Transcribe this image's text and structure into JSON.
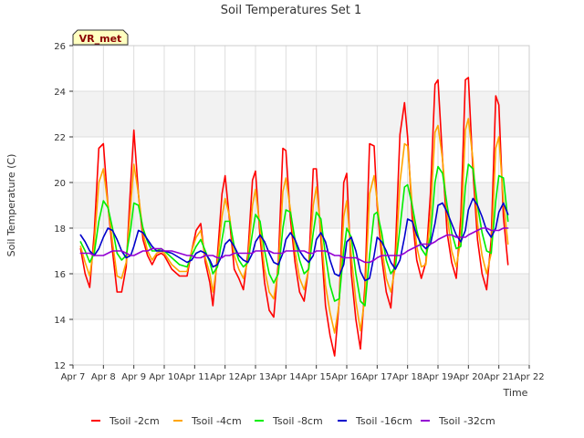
{
  "chart_data": {
    "type": "line",
    "title": "Soil Temperatures Set 1",
    "xlabel": "Time",
    "ylabel": "Soil Temperature (C)",
    "xlim": [
      7,
      22
    ],
    "ylim": [
      12,
      26
    ],
    "x_tick_values": [
      7,
      8,
      9,
      10,
      11,
      12,
      13,
      14,
      15,
      16,
      17,
      18,
      19,
      20,
      21,
      22
    ],
    "x_tick_labels": [
      "Apr 7",
      "Apr 8",
      "Apr 9",
      "Apr 10",
      "Apr 11",
      "Apr 12",
      "Apr 13",
      "Apr 14",
      "Apr 15",
      "Apr 16",
      "Apr 17",
      "Apr 18",
      "Apr 19",
      "Apr 20",
      "Apr 21",
      "Apr 22"
    ],
    "y_ticks": [
      12,
      14,
      16,
      18,
      20,
      22,
      24,
      26
    ],
    "grid": true,
    "legend_position": "bottom",
    "annotation": "VR_met",
    "series": [
      {
        "name": "Tsoil -2cm",
        "color": "#ff0000",
        "x": [
          7.25,
          7.4,
          7.55,
          7.7,
          7.85,
          8.0,
          8.15,
          8.3,
          8.45,
          8.6,
          8.75,
          8.9,
          9.0,
          9.15,
          9.3,
          9.45,
          9.6,
          9.75,
          9.9,
          10.0,
          10.25,
          10.5,
          10.75,
          10.9,
          11.05,
          11.2,
          11.35,
          11.5,
          11.6,
          11.75,
          11.9,
          12.0,
          12.15,
          12.3,
          12.45,
          12.6,
          12.75,
          12.9,
          13.0,
          13.15,
          13.3,
          13.45,
          13.6,
          13.75,
          13.9,
          14.0,
          14.15,
          14.3,
          14.45,
          14.6,
          14.75,
          14.9,
          15.0,
          15.15,
          15.3,
          15.45,
          15.6,
          15.75,
          15.9,
          16.0,
          16.15,
          16.3,
          16.45,
          16.6,
          16.75,
          16.9,
          17.0,
          17.15,
          17.3,
          17.45,
          17.6,
          17.75,
          17.9,
          18.0,
          18.15,
          18.3,
          18.45,
          18.6,
          18.75,
          18.9,
          19.0,
          19.15,
          19.3,
          19.45,
          19.6,
          19.75,
          19.9,
          20.0,
          20.15,
          20.3,
          20.45,
          20.6,
          20.75,
          20.9,
          21.0,
          21.15,
          21.3
        ],
        "values": [
          17.1,
          16.0,
          15.4,
          17.8,
          21.5,
          21.7,
          19.0,
          17.0,
          15.2,
          15.2,
          16.3,
          20.0,
          22.3,
          19.5,
          17.5,
          16.8,
          16.4,
          16.8,
          16.9,
          16.8,
          16.2,
          15.9,
          15.9,
          17.0,
          17.9,
          18.2,
          16.5,
          15.6,
          14.6,
          16.8,
          19.5,
          20.3,
          18.3,
          16.2,
          15.8,
          15.3,
          16.9,
          20.1,
          20.5,
          17.6,
          15.6,
          14.4,
          14.1,
          16.5,
          21.5,
          21.4,
          18.4,
          16.5,
          15.2,
          14.8,
          16.3,
          20.6,
          20.6,
          17.5,
          14.6,
          13.3,
          12.4,
          14.8,
          20.0,
          20.4,
          16.0,
          14.0,
          12.7,
          15.5,
          21.7,
          21.6,
          19.0,
          16.7,
          15.2,
          14.5,
          17.0,
          22.1,
          23.5,
          22.0,
          18.5,
          16.6,
          15.8,
          16.5,
          19.5,
          24.3,
          24.5,
          21.0,
          17.8,
          16.5,
          15.8,
          18.5,
          24.5,
          24.6,
          20.5,
          17.5,
          16.0,
          15.3,
          17.5,
          23.8,
          23.4,
          18.5,
          16.4
        ]
      },
      {
        "name": "Tsoil -4cm",
        "color": "#ffa500",
        "x": [
          7.25,
          7.4,
          7.55,
          7.7,
          7.85,
          8.0,
          8.15,
          8.3,
          8.45,
          8.6,
          8.75,
          8.9,
          9.0,
          9.15,
          9.3,
          9.45,
          9.6,
          9.75,
          9.9,
          10.0,
          10.25,
          10.5,
          10.75,
          10.9,
          11.05,
          11.2,
          11.35,
          11.5,
          11.6,
          11.75,
          11.9,
          12.0,
          12.15,
          12.3,
          12.45,
          12.6,
          12.75,
          12.9,
          13.0,
          13.15,
          13.3,
          13.45,
          13.6,
          13.75,
          13.9,
          14.0,
          14.15,
          14.3,
          14.45,
          14.6,
          14.75,
          14.9,
          15.0,
          15.15,
          15.3,
          15.45,
          15.6,
          15.75,
          15.9,
          16.0,
          16.15,
          16.3,
          16.45,
          16.6,
          16.75,
          16.9,
          17.0,
          17.15,
          17.3,
          17.45,
          17.6,
          17.75,
          17.9,
          18.0,
          18.15,
          18.3,
          18.45,
          18.6,
          18.75,
          18.9,
          19.0,
          19.15,
          19.3,
          19.45,
          19.6,
          19.75,
          19.9,
          20.0,
          20.15,
          20.3,
          20.45,
          20.6,
          20.75,
          20.9,
          21.0,
          21.15,
          21.3
        ],
        "values": [
          17.2,
          16.5,
          15.9,
          17.3,
          20.0,
          20.6,
          19.0,
          17.4,
          15.9,
          15.8,
          16.5,
          19.0,
          20.8,
          19.5,
          17.8,
          17.0,
          16.6,
          16.9,
          17.0,
          16.9,
          16.4,
          16.1,
          16.1,
          17.0,
          17.6,
          17.9,
          16.7,
          16.0,
          15.2,
          16.5,
          18.5,
          19.3,
          18.5,
          16.8,
          16.2,
          15.8,
          16.6,
          19.0,
          19.7,
          18.0,
          16.2,
          15.2,
          14.9,
          16.2,
          19.6,
          20.2,
          18.8,
          17.0,
          15.8,
          15.3,
          16.2,
          19.0,
          19.8,
          17.9,
          15.5,
          14.3,
          13.4,
          14.7,
          18.5,
          19.2,
          16.8,
          14.8,
          13.5,
          15.0,
          19.5,
          20.3,
          19.2,
          17.2,
          15.8,
          15.2,
          16.3,
          20.0,
          21.7,
          21.6,
          19.0,
          17.2,
          16.3,
          16.4,
          18.5,
          22.2,
          22.5,
          21.0,
          18.6,
          17.0,
          16.3,
          17.5,
          22.3,
          22.8,
          21.0,
          18.2,
          16.8,
          16.0,
          16.9,
          21.5,
          22.0,
          19.2,
          17.3
        ]
      },
      {
        "name": "Tsoil -8cm",
        "color": "#00ee00",
        "x": [
          7.25,
          7.4,
          7.55,
          7.7,
          7.85,
          8.0,
          8.15,
          8.3,
          8.45,
          8.6,
          8.75,
          8.9,
          9.0,
          9.15,
          9.3,
          9.45,
          9.6,
          9.75,
          9.9,
          10.0,
          10.25,
          10.5,
          10.75,
          10.9,
          11.05,
          11.2,
          11.35,
          11.5,
          11.6,
          11.75,
          11.9,
          12.0,
          12.15,
          12.3,
          12.45,
          12.6,
          12.75,
          12.9,
          13.0,
          13.15,
          13.3,
          13.45,
          13.6,
          13.75,
          13.9,
          14.0,
          14.15,
          14.3,
          14.45,
          14.6,
          14.75,
          14.9,
          15.0,
          15.15,
          15.3,
          15.45,
          15.6,
          15.75,
          15.9,
          16.0,
          16.15,
          16.3,
          16.45,
          16.6,
          16.75,
          16.9,
          17.0,
          17.15,
          17.3,
          17.45,
          17.6,
          17.75,
          17.9,
          18.0,
          18.15,
          18.3,
          18.45,
          18.6,
          18.75,
          18.9,
          19.0,
          19.15,
          19.3,
          19.45,
          19.6,
          19.75,
          19.9,
          20.0,
          20.15,
          20.3,
          20.45,
          20.6,
          20.75,
          20.9,
          21.0,
          21.15,
          21.3
        ],
        "values": [
          17.4,
          17.0,
          16.5,
          16.9,
          18.3,
          19.2,
          18.9,
          18.0,
          16.9,
          16.6,
          16.8,
          18.0,
          19.1,
          19.0,
          18.0,
          17.4,
          17.0,
          17.0,
          17.1,
          17.0,
          16.7,
          16.4,
          16.3,
          16.8,
          17.2,
          17.5,
          17.0,
          16.5,
          16.0,
          16.3,
          17.5,
          18.3,
          18.3,
          17.2,
          16.6,
          16.3,
          16.5,
          17.8,
          18.6,
          18.3,
          17.0,
          16.0,
          15.6,
          16.0,
          18.0,
          18.8,
          18.7,
          17.5,
          16.6,
          16.0,
          16.2,
          17.8,
          18.7,
          18.4,
          16.8,
          15.5,
          14.8,
          14.9,
          17.0,
          18.0,
          17.6,
          16.0,
          14.8,
          14.6,
          16.8,
          18.6,
          18.7,
          17.8,
          16.6,
          16.0,
          16.3,
          18.0,
          19.8,
          19.9,
          19.0,
          17.9,
          17.1,
          16.8,
          17.6,
          20.0,
          20.7,
          20.4,
          19.0,
          17.8,
          17.1,
          17.2,
          19.8,
          20.8,
          20.6,
          19.0,
          17.8,
          17.0,
          16.9,
          19.2,
          20.3,
          20.2,
          18.3
        ]
      },
      {
        "name": "Tsoil -16cm",
        "color": "#0000cc",
        "x": [
          7.25,
          7.4,
          7.55,
          7.7,
          7.85,
          8.0,
          8.15,
          8.3,
          8.45,
          8.6,
          8.75,
          8.9,
          9.0,
          9.15,
          9.3,
          9.45,
          9.6,
          9.75,
          9.9,
          10.0,
          10.25,
          10.5,
          10.75,
          10.9,
          11.05,
          11.2,
          11.35,
          11.5,
          11.6,
          11.75,
          11.9,
          12.0,
          12.15,
          12.3,
          12.45,
          12.6,
          12.75,
          12.9,
          13.0,
          13.15,
          13.3,
          13.45,
          13.6,
          13.75,
          13.9,
          14.0,
          14.15,
          14.3,
          14.45,
          14.6,
          14.75,
          14.9,
          15.0,
          15.15,
          15.3,
          15.45,
          15.6,
          15.75,
          15.9,
          16.0,
          16.15,
          16.3,
          16.45,
          16.6,
          16.75,
          16.9,
          17.0,
          17.15,
          17.3,
          17.45,
          17.6,
          17.75,
          17.9,
          18.0,
          18.15,
          18.3,
          18.45,
          18.6,
          18.75,
          18.9,
          19.0,
          19.15,
          19.3,
          19.45,
          19.6,
          19.75,
          19.9,
          20.0,
          20.15,
          20.3,
          20.45,
          20.6,
          20.75,
          20.9,
          21.0,
          21.15,
          21.3
        ],
        "values": [
          17.7,
          17.4,
          17.0,
          16.8,
          17.1,
          17.6,
          18.0,
          17.9,
          17.5,
          17.0,
          16.7,
          16.8,
          17.2,
          17.9,
          17.8,
          17.5,
          17.2,
          17.0,
          17.0,
          17.0,
          16.9,
          16.7,
          16.5,
          16.6,
          16.9,
          17.0,
          16.9,
          16.6,
          16.3,
          16.4,
          16.8,
          17.3,
          17.5,
          17.2,
          16.8,
          16.6,
          16.5,
          16.9,
          17.4,
          17.7,
          17.4,
          16.9,
          16.5,
          16.4,
          16.9,
          17.5,
          17.8,
          17.5,
          17.0,
          16.7,
          16.5,
          16.8,
          17.5,
          17.8,
          17.4,
          16.6,
          16.0,
          15.9,
          16.4,
          17.4,
          17.6,
          17.0,
          16.1,
          15.7,
          15.8,
          16.8,
          17.6,
          17.4,
          17.0,
          16.5,
          16.2,
          16.6,
          17.6,
          18.4,
          18.3,
          17.7,
          17.3,
          17.1,
          17.3,
          18.2,
          19.0,
          19.1,
          18.7,
          18.2,
          17.7,
          17.4,
          17.9,
          18.8,
          19.3,
          19.0,
          18.5,
          17.9,
          17.6,
          18.0,
          18.7,
          19.1,
          18.6
        ]
      },
      {
        "name": "Tsoil -32cm",
        "color": "#9400d3",
        "x": [
          7.25,
          7.4,
          7.55,
          7.7,
          7.85,
          8.0,
          8.15,
          8.3,
          8.45,
          8.6,
          8.75,
          8.9,
          9.0,
          9.15,
          9.3,
          9.45,
          9.6,
          9.75,
          9.9,
          10.0,
          10.25,
          10.5,
          10.75,
          10.9,
          11.05,
          11.2,
          11.35,
          11.5,
          11.6,
          11.75,
          11.9,
          12.0,
          12.15,
          12.3,
          12.45,
          12.6,
          12.75,
          12.9,
          13.0,
          13.15,
          13.3,
          13.45,
          13.6,
          13.75,
          13.9,
          14.0,
          14.15,
          14.3,
          14.45,
          14.6,
          14.75,
          14.9,
          15.0,
          15.15,
          15.3,
          15.45,
          15.6,
          15.75,
          15.9,
          16.0,
          16.15,
          16.3,
          16.45,
          16.6,
          16.75,
          16.9,
          17.0,
          17.15,
          17.3,
          17.45,
          17.6,
          17.75,
          17.9,
          18.0,
          18.15,
          18.3,
          18.45,
          18.6,
          18.75,
          18.9,
          19.0,
          19.15,
          19.3,
          19.45,
          19.6,
          19.75,
          19.9,
          20.0,
          20.15,
          20.3,
          20.45,
          20.6,
          20.75,
          20.9,
          21.0,
          21.15,
          21.3
        ],
        "values": [
          16.9,
          16.9,
          16.9,
          16.8,
          16.8,
          16.8,
          16.9,
          17.0,
          17.0,
          17.0,
          16.9,
          16.8,
          16.8,
          16.9,
          17.0,
          17.0,
          17.1,
          17.1,
          17.1,
          17.0,
          17.0,
          16.9,
          16.8,
          16.8,
          16.7,
          16.7,
          16.8,
          16.8,
          16.8,
          16.7,
          16.7,
          16.8,
          16.8,
          16.9,
          16.9,
          16.9,
          16.9,
          16.9,
          17.0,
          17.0,
          17.0,
          17.0,
          16.9,
          16.9,
          16.9,
          17.0,
          17.0,
          17.0,
          17.0,
          17.0,
          16.9,
          16.9,
          17.0,
          17.0,
          17.0,
          16.9,
          16.8,
          16.8,
          16.7,
          16.7,
          16.7,
          16.7,
          16.6,
          16.5,
          16.5,
          16.6,
          16.7,
          16.8,
          16.8,
          16.8,
          16.8,
          16.8,
          16.9,
          17.0,
          17.1,
          17.2,
          17.3,
          17.3,
          17.3,
          17.4,
          17.5,
          17.6,
          17.7,
          17.7,
          17.6,
          17.6,
          17.6,
          17.7,
          17.8,
          17.9,
          18.0,
          18.0,
          17.9,
          17.9,
          17.9,
          18.0,
          18.0
        ]
      }
    ]
  }
}
